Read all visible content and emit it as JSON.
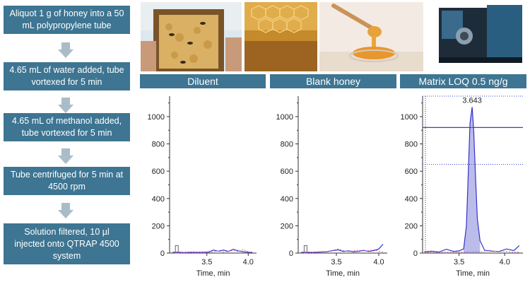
{
  "workflow": {
    "steps": [
      "Aliquot 1 g of honey into a 50 mL polypropylene tube",
      "4.65 mL of water added, tube vortexed for 5 min",
      "4.65 mL of methanol added, tube vortexed for 5 min",
      "Tube centrifuged for 5 min at 4500 rpm",
      "Solution filtered, 10 µl injected onto QTRAP 4500 system"
    ]
  },
  "panels": {
    "diluent": "Diluent",
    "blank": "Blank honey",
    "matrix": "Matrix LOQ 0.5 ng/g"
  },
  "chart_data": [
    {
      "type": "line",
      "title": "Diluent",
      "xlabel": "Time, min",
      "ylabel": "",
      "xlim": [
        3.05,
        4.1
      ],
      "ylim": [
        0,
        1150
      ],
      "xticks": [
        3.5,
        4.0
      ],
      "yticks": [
        0,
        200,
        400,
        600,
        800,
        1000
      ],
      "series": [
        {
          "color": "#3333cc",
          "x": [
            3.08,
            3.15,
            3.22,
            3.3,
            3.38,
            3.46,
            3.52,
            3.58,
            3.64,
            3.7,
            3.76,
            3.82,
            3.88,
            3.94,
            4.0,
            4.05
          ],
          "y": [
            5,
            6,
            4,
            6,
            5,
            6,
            8,
            22,
            14,
            22,
            12,
            28,
            16,
            10,
            6,
            5
          ]
        },
        {
          "color": "#e060b0",
          "x": [
            3.08,
            3.15,
            3.22,
            3.3,
            3.38,
            3.46,
            3.52,
            3.58,
            3.64,
            3.7,
            3.76,
            3.82,
            3.88,
            3.94,
            4.0,
            4.05
          ],
          "y": [
            2,
            3,
            2,
            3,
            2,
            3,
            5,
            10,
            16,
            8,
            14,
            20,
            10,
            26,
            10,
            4
          ]
        }
      ]
    },
    {
      "type": "line",
      "title": "Blank honey",
      "xlabel": "Time, min",
      "ylabel": "",
      "xlim": [
        3.05,
        4.1
      ],
      "ylim": [
        0,
        1150
      ],
      "xticks": [
        3.5,
        4.0
      ],
      "yticks": [
        0,
        200,
        400,
        600,
        800,
        1000
      ],
      "series": [
        {
          "color": "#3333cc",
          "x": [
            3.08,
            3.15,
            3.22,
            3.3,
            3.38,
            3.46,
            3.52,
            3.58,
            3.64,
            3.7,
            3.76,
            3.82,
            3.88,
            3.94,
            4.0,
            4.05
          ],
          "y": [
            5,
            6,
            5,
            8,
            10,
            18,
            24,
            12,
            16,
            10,
            12,
            20,
            12,
            18,
            30,
            65
          ]
        },
        {
          "color": "#e060b0",
          "x": [
            3.08,
            3.15,
            3.22,
            3.3,
            3.38,
            3.46,
            3.52,
            3.58,
            3.64,
            3.7,
            3.76,
            3.82,
            3.88,
            3.94,
            4.0,
            4.05
          ],
          "y": [
            3,
            5,
            4,
            6,
            8,
            20,
            30,
            18,
            12,
            16,
            22,
            14,
            18,
            24,
            14,
            8
          ]
        }
      ]
    },
    {
      "type": "line",
      "title": "Matrix LOQ 0.5 ng/g",
      "xlabel": "Time, min",
      "ylabel": "",
      "xlim": [
        3.1,
        4.2
      ],
      "ylim": [
        0,
        1150
      ],
      "xticks": [
        3.5,
        4.0
      ],
      "yticks": [
        0,
        200,
        400,
        600,
        800,
        1000
      ],
      "peak_label": "3.643",
      "series": [
        {
          "color": "#3333cc",
          "x": [
            3.12,
            3.2,
            3.28,
            3.36,
            3.44,
            3.5,
            3.55,
            3.58,
            3.6,
            3.62,
            3.643,
            3.66,
            3.68,
            3.7,
            3.73,
            3.78,
            3.86,
            3.94,
            4.02,
            4.1,
            4.16
          ],
          "y": [
            10,
            14,
            8,
            28,
            12,
            16,
            30,
            200,
            560,
            950,
            1070,
            900,
            560,
            250,
            90,
            20,
            14,
            12,
            30,
            18,
            55
          ]
        },
        {
          "color": "#e060b0",
          "x": [
            3.12,
            3.2,
            3.28,
            3.36,
            3.44,
            3.52,
            3.6,
            3.68,
            3.76,
            3.84,
            3.92,
            4.0,
            4.08,
            4.16
          ],
          "y": [
            4,
            6,
            5,
            8,
            6,
            8,
            10,
            12,
            8,
            20,
            10,
            14,
            8,
            5
          ]
        }
      ]
    }
  ]
}
